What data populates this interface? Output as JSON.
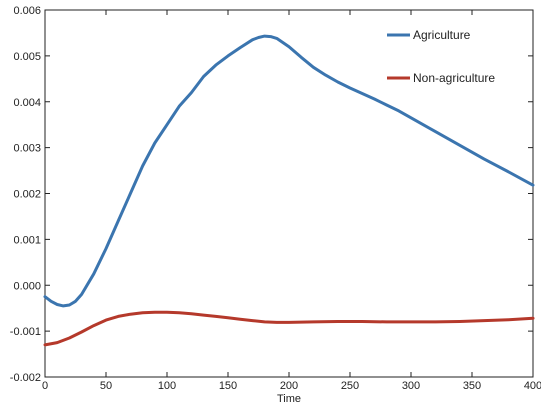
{
  "chart_data": {
    "type": "line",
    "title": "",
    "xlabel": "Time",
    "ylabel": "",
    "xlim": [
      0,
      400
    ],
    "ylim": [
      -0.002,
      0.006
    ],
    "xticks": [
      0,
      50,
      100,
      150,
      200,
      250,
      300,
      350,
      400
    ],
    "xtick_labels": [
      "0",
      "50",
      "100",
      "150",
      "200",
      "250",
      "300",
      "350",
      "400"
    ],
    "yticks": [
      -0.002,
      -0.001,
      0,
      0.001,
      0.002,
      0.003,
      0.004,
      0.005,
      0.006
    ],
    "ytick_labels": [
      "-0.002",
      "-0.001",
      "0.000",
      "0.001",
      "0.002",
      "0.003",
      "0.004",
      "0.005",
      "0.006"
    ],
    "grid": false,
    "legend_position": "top-right",
    "series": [
      {
        "name": "Agriculture",
        "color": "#3b75af",
        "x": [
          0,
          5,
          10,
          15,
          20,
          25,
          30,
          40,
          50,
          60,
          70,
          80,
          90,
          100,
          110,
          120,
          130,
          140,
          150,
          160,
          170,
          175,
          180,
          185,
          190,
          200,
          210,
          220,
          230,
          240,
          250,
          260,
          270,
          280,
          290,
          300,
          320,
          340,
          360,
          380,
          400
        ],
        "y": [
          -0.00025,
          -0.00035,
          -0.00042,
          -0.00045,
          -0.00043,
          -0.00035,
          -0.0002,
          0.00025,
          0.0008,
          0.0014,
          0.002,
          0.0026,
          0.0031,
          0.0035,
          0.0039,
          0.0042,
          0.00455,
          0.0048,
          0.005,
          0.00518,
          0.00535,
          0.0054,
          0.00543,
          0.00542,
          0.00538,
          0.0052,
          0.00497,
          0.00475,
          0.00458,
          0.00443,
          0.0043,
          0.00418,
          0.00406,
          0.00393,
          0.0038,
          0.00365,
          0.00335,
          0.00305,
          0.00275,
          0.00247,
          0.00218
        ]
      },
      {
        "name": "Non-agriculture",
        "color": "#b5392b",
        "x": [
          0,
          10,
          20,
          30,
          40,
          50,
          60,
          70,
          80,
          90,
          100,
          110,
          120,
          130,
          140,
          150,
          160,
          170,
          180,
          190,
          200,
          220,
          240,
          260,
          280,
          300,
          320,
          340,
          360,
          380,
          400
        ],
        "y": [
          -0.0013,
          -0.00125,
          -0.00115,
          -0.00102,
          -0.00088,
          -0.00076,
          -0.00068,
          -0.00063,
          -0.0006,
          -0.00059,
          -0.00059,
          -0.0006,
          -0.00062,
          -0.00065,
          -0.00068,
          -0.00071,
          -0.00074,
          -0.00077,
          -0.0008,
          -0.00081,
          -0.00081,
          -0.0008,
          -0.00079,
          -0.00079,
          -0.0008,
          -0.0008,
          -0.0008,
          -0.00079,
          -0.00077,
          -0.00075,
          -0.00072
        ]
      }
    ]
  }
}
